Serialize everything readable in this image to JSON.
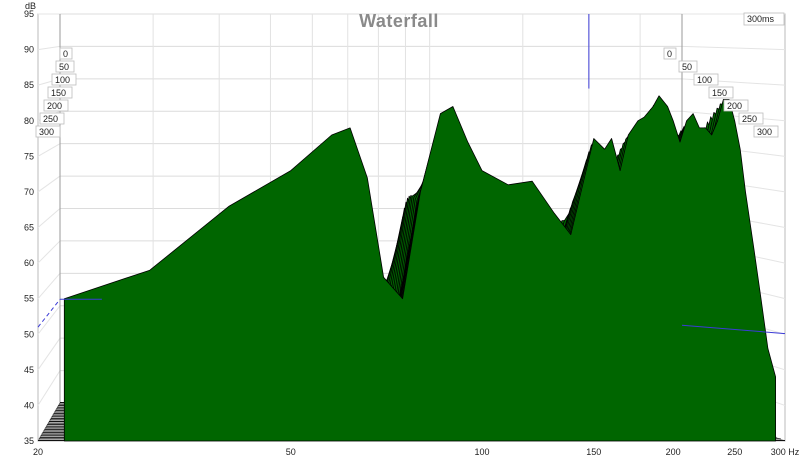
{
  "chart_data": {
    "type": "area",
    "title": "Waterfall",
    "xlabel": "Hz",
    "ylabel": "dB",
    "xlim": [
      20,
      300
    ],
    "ylim": [
      35,
      95
    ],
    "x_ticks": [
      "20",
      "50",
      "100",
      "150",
      "200",
      "250",
      "300 Hz"
    ],
    "y_ticks": [
      "35",
      "40",
      "45",
      "50",
      "55",
      "60",
      "65",
      "70",
      "75",
      "80",
      "85",
      "90",
      "95"
    ],
    "time_unit": "ms",
    "time_range": [
      0,
      300
    ],
    "time_ticks_left": [
      "0",
      "50",
      "100",
      "150",
      "200",
      "250",
      "300"
    ],
    "time_ticks_right": [
      "0",
      "50",
      "100",
      "150",
      "200",
      "250",
      "300"
    ],
    "depth_label": "300ms",
    "front_slice": {
      "x": [
        22,
        30,
        40,
        50,
        58,
        62,
        66,
        70,
        75,
        80,
        86,
        90,
        95,
        100,
        110,
        120,
        130,
        138,
        145,
        150,
        156,
        160,
        165,
        170,
        176,
        180,
        186,
        190,
        196,
        200,
        205,
        210,
        215,
        220,
        225,
        230,
        235,
        240,
        245,
        250,
        255,
        260,
        268,
        275,
        282,
        290
      ],
      "y": [
        55,
        59,
        68,
        73,
        78,
        79,
        72,
        58,
        55,
        70,
        81,
        82,
        77,
        73,
        71,
        71.5,
        67,
        64,
        72,
        77.5,
        76,
        77.5,
        73,
        78,
        80,
        80.5,
        82,
        83.5,
        82,
        80,
        77,
        80,
        81,
        79,
        79,
        78,
        80,
        83,
        83,
        80,
        76,
        70,
        62,
        55,
        48,
        44
      ]
    },
    "decay_db_per_slice": 1.0,
    "slice_count": 30,
    "fill_color": "#006600",
    "line_color": "#000000",
    "marker_x": 200,
    "grid": true
  }
}
